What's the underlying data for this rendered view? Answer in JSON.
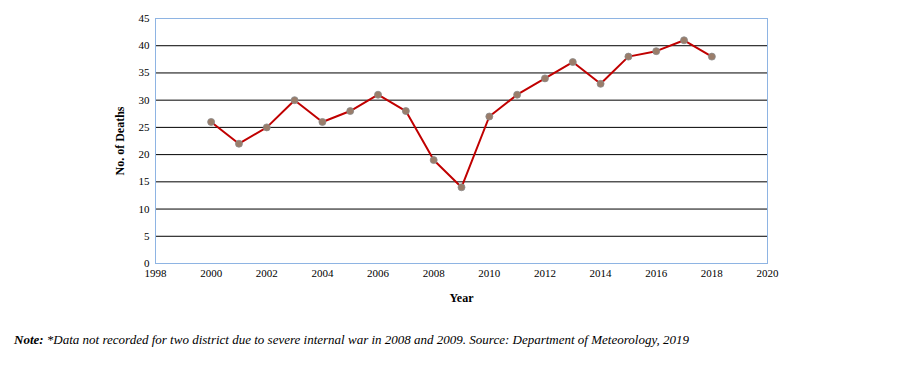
{
  "chart_data": {
    "type": "line",
    "x_label": "Year",
    "y_label": "No. of Deaths",
    "caption": "Note: *Data not recorded for two district due to severe internal war in 2008 and 2009. Source: Department of Meteorology, 2019",
    "x": [
      2000,
      2001,
      2002,
      2003,
      2004,
      2005,
      2006,
      2007,
      2008,
      2009,
      2010,
      2011,
      2012,
      2013,
      2014,
      2015,
      2016,
      2017,
      2018
    ],
    "values": [
      26,
      22,
      25,
      30,
      26,
      28,
      31,
      28,
      19,
      14,
      27,
      31,
      34,
      37,
      33,
      38,
      39,
      41,
      38
    ],
    "color": "#c00000",
    "marker": "circle",
    "xlim": [
      1998,
      2020
    ],
    "xticks": [
      1998,
      2000,
      2002,
      2004,
      2006,
      2008,
      2010,
      2012,
      2014,
      2016,
      2018,
      2020
    ],
    "ylim": [
      0,
      45
    ],
    "yticks": [
      0,
      5,
      10,
      15,
      20,
      25,
      30,
      35,
      40,
      45
    ],
    "grid": true
  }
}
